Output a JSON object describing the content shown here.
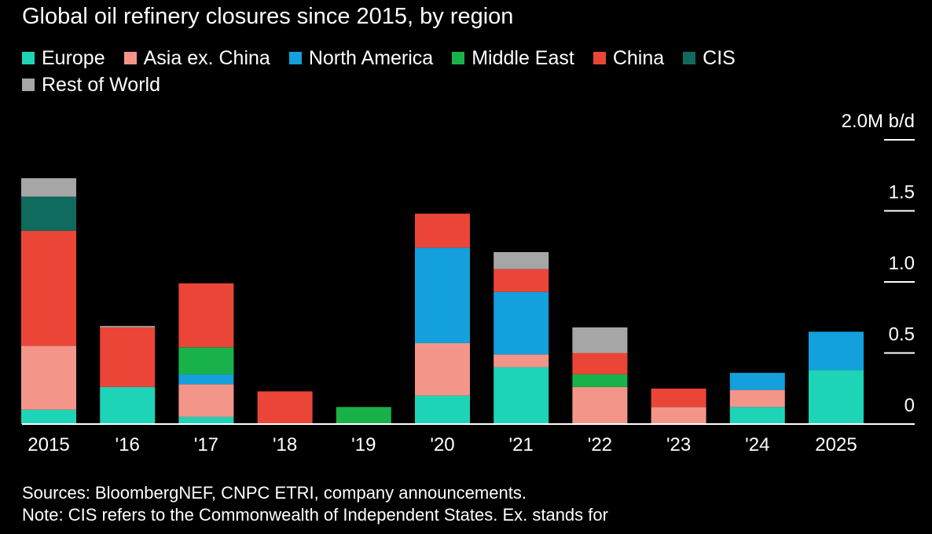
{
  "chart_data": {
    "type": "bar",
    "stacked": true,
    "title": "Global oil refinery closures since 2015, by region",
    "unit_label": "2.0M b/d",
    "categories": [
      "2015",
      "'16",
      "'17",
      "'18",
      "'19",
      "'20",
      "'21",
      "'22",
      "'23",
      "'24",
      "2025"
    ],
    "ylim": [
      0,
      2.0
    ],
    "yticks": [
      {
        "value": 0,
        "label": "0"
      },
      {
        "value": 0.5,
        "label": "0.5"
      },
      {
        "value": 1.0,
        "label": "1.0"
      },
      {
        "value": 1.5,
        "label": "1.5"
      },
      {
        "value": 2.0,
        "label": "2.0M b/d"
      }
    ],
    "legend_position": "top-left",
    "grid": false,
    "series": [
      {
        "name": "Europe",
        "color": "#1ed4b6",
        "values": [
          0.1,
          0.26,
          0.05,
          0,
          0,
          0.2,
          0.4,
          0,
          0,
          0.12,
          0.38
        ]
      },
      {
        "name": "Asia ex. China",
        "color": "#f4958a",
        "values": [
          0.45,
          0,
          0.23,
          0,
          0,
          0.37,
          0.09,
          0.26,
          0.12,
          0.12,
          0
        ]
      },
      {
        "name": "North America",
        "color": "#13a0dc",
        "values": [
          0,
          0,
          0.07,
          0,
          0,
          0.67,
          0.44,
          0,
          0,
          0.12,
          0.27
        ]
      },
      {
        "name": "Middle East",
        "color": "#19b24a",
        "values": [
          0,
          0,
          0.19,
          0,
          0.12,
          0,
          0,
          0.09,
          0,
          0,
          0
        ]
      },
      {
        "name": "China",
        "color": "#ea4537",
        "values": [
          0.81,
          0.42,
          0.45,
          0.23,
          0,
          0.24,
          0.16,
          0.15,
          0.13,
          0,
          0
        ]
      },
      {
        "name": "CIS",
        "color": "#0e6b5e",
        "values": [
          0.24,
          0,
          0,
          0,
          0,
          0,
          0,
          0,
          0,
          0,
          0
        ]
      },
      {
        "name": "Rest of World",
        "color": "#a6a6a6",
        "values": [
          0.13,
          0.01,
          0,
          0,
          0,
          0,
          0.12,
          0.18,
          0,
          0,
          0
        ]
      }
    ]
  },
  "footnote": {
    "sources": "Sources: BloombergNEF, CNPC ETRI, company announcements.",
    "note": "Note: CIS refers to the Commonwealth of Independent States. Ex. stands for"
  }
}
